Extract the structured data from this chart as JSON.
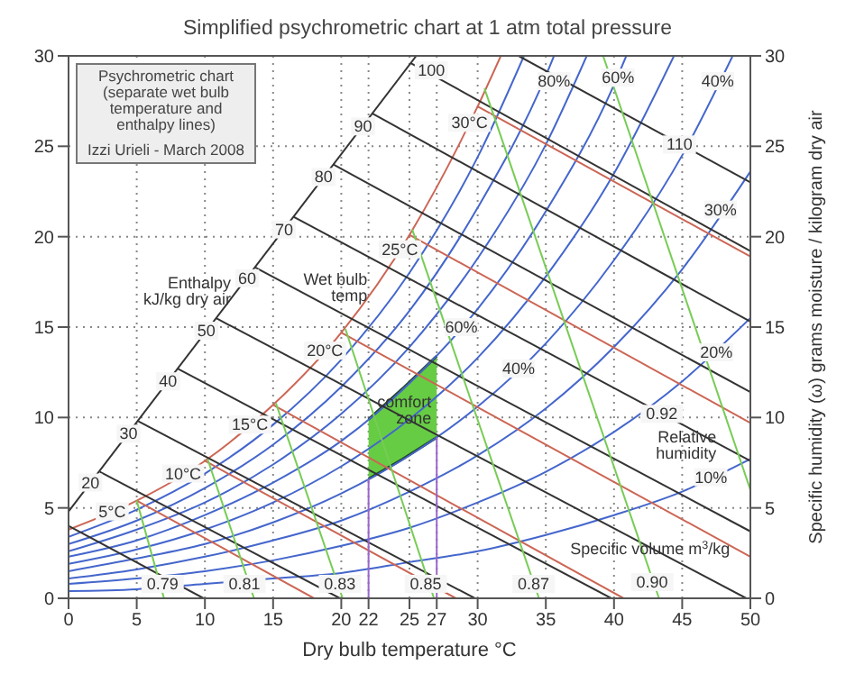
{
  "chart_data": {
    "type": "line",
    "title": "Simplified psychrometric chart at 1 atm total pressure",
    "xlabel": "Dry bulb temperature °C",
    "y2label": "Specific humidity (ω) grams moisture / kilogram dry air",
    "xlim": [
      0,
      50
    ],
    "xticks": [
      0,
      5,
      10,
      15,
      20,
      22,
      25,
      27,
      30,
      35,
      40,
      45,
      50
    ],
    "ylim": [
      0,
      30
    ],
    "yticks": [
      0,
      5,
      10,
      15,
      20,
      25,
      30
    ],
    "y2lim": [
      0,
      30
    ],
    "y2ticks": [
      0,
      5,
      10,
      15,
      20,
      25,
      30
    ],
    "grid": true,
    "series": [
      {
        "color": "#cc6655",
        "x": [
          0,
          5,
          10,
          15,
          20,
          25,
          30,
          31.7
        ],
        "values": [
          3.8,
          5.4,
          7.6,
          10.7,
          14.7,
          20.1,
          27.2,
          30
        ]
      },
      {
        "color": "#4466cc",
        "x": [
          0,
          5,
          10,
          15,
          20,
          25,
          30,
          33.4
        ],
        "values": [
          3.4,
          4.9,
          6.9,
          9.6,
          13.2,
          18.0,
          24.4,
          30
        ]
      },
      {
        "color": "#4466cc",
        "x": [
          0,
          5,
          10,
          15,
          20,
          25,
          30,
          35,
          35.6
        ],
        "values": [
          3.0,
          4.3,
          6.1,
          8.5,
          11.7,
          15.9,
          21.6,
          28.9,
          30
        ]
      },
      {
        "color": "#4466cc",
        "x": [
          0,
          5,
          10,
          15,
          20,
          25,
          30,
          35,
          38
        ],
        "values": [
          2.6,
          3.8,
          5.3,
          7.4,
          10.2,
          13.9,
          18.8,
          25.1,
          30
        ]
      },
      {
        "color": "#4466cc",
        "x": [
          0,
          5,
          10,
          15,
          20,
          25,
          30,
          35,
          40,
          40.9
        ],
        "values": [
          2.3,
          3.2,
          4.6,
          6.4,
          8.7,
          11.9,
          16.0,
          21.4,
          28.4,
          30
        ]
      },
      {
        "color": "#4466cc",
        "x": [
          0,
          5,
          10,
          15,
          20,
          25,
          30,
          35,
          40,
          44.4
        ],
        "values": [
          1.9,
          2.7,
          3.8,
          5.3,
          7.3,
          9.9,
          13.3,
          17.8,
          23.5,
          30
        ]
      },
      {
        "color": "#4466cc",
        "x": [
          0,
          5,
          10,
          15,
          20,
          25,
          30,
          35,
          40,
          45,
          48.7
        ],
        "values": [
          1.5,
          2.2,
          3.0,
          4.2,
          5.8,
          7.9,
          10.6,
          14.1,
          18.7,
          24.5,
          30
        ]
      },
      {
        "color": "#4466cc",
        "x": [
          0,
          5,
          10,
          15,
          20,
          25,
          30,
          35,
          40,
          45,
          50
        ],
        "values": [
          1.1,
          1.6,
          2.3,
          3.2,
          4.3,
          5.9,
          7.9,
          10.5,
          13.9,
          18.2,
          23.6
        ]
      },
      {
        "color": "#4466cc",
        "x": [
          0,
          5,
          10,
          15,
          20,
          25,
          30,
          35,
          40,
          45,
          50
        ],
        "values": [
          0.8,
          1.1,
          1.5,
          2.1,
          2.9,
          3.9,
          5.3,
          7.0,
          9.2,
          12.0,
          15.5
        ]
      },
      {
        "color": "#4466cc",
        "x": [
          0,
          5,
          10,
          15,
          20,
          25,
          30,
          35,
          40,
          45,
          50
        ],
        "values": [
          0.4,
          0.5,
          0.8,
          1.1,
          1.4,
          2.0,
          2.6,
          3.5,
          4.6,
          5.9,
          7.7
        ]
      },
      {
        "color": "#333333",
        "x": [
          0,
          25.5
        ],
        "values": [
          4.8,
          30
        ]
      },
      {
        "color": "#333333",
        "x": [
          0,
          9.9
        ],
        "values": [
          4.0,
          0
        ]
      },
      {
        "color": "#333333",
        "x": [
          2.3,
          19.9
        ],
        "values": [
          7.0,
          0
        ]
      },
      {
        "color": "#333333",
        "x": [
          5.1,
          29.8
        ],
        "values": [
          9.8,
          0
        ]
      },
      {
        "color": "#333333",
        "x": [
          8.0,
          39.8
        ],
        "values": [
          12.7,
          0
        ]
      },
      {
        "color": "#333333",
        "x": [
          10.8,
          49.7
        ],
        "values": [
          15.5,
          0
        ]
      },
      {
        "color": "#333333",
        "x": [
          13.7,
          50
        ],
        "values": [
          18.3,
          3.7
        ]
      },
      {
        "color": "#333333",
        "x": [
          16.5,
          50
        ],
        "values": [
          21.1,
          7.6
        ]
      },
      {
        "color": "#333333",
        "x": [
          19.4,
          50
        ],
        "values": [
          24.0,
          11.4
        ]
      },
      {
        "color": "#333333",
        "x": [
          22.3,
          50
        ],
        "values": [
          26.8,
          15.3
        ]
      },
      {
        "color": "#333333",
        "x": [
          25.1,
          50
        ],
        "values": [
          29.6,
          19.2
        ]
      },
      {
        "color": "#333333",
        "x": [
          33,
          50
        ],
        "values": [
          30,
          23.0
        ]
      },
      {
        "color": "#cc6655",
        "x": [
          5,
          18.0
        ],
        "values": [
          5.4,
          0
        ]
      },
      {
        "color": "#cc6655",
        "x": [
          10,
          28.4
        ],
        "values": [
          7.6,
          0
        ]
      },
      {
        "color": "#cc6655",
        "x": [
          15,
          40.7
        ],
        "values": [
          10.7,
          0
        ]
      },
      {
        "color": "#cc6655",
        "x": [
          20,
          50
        ],
        "values": [
          14.7,
          2.3
        ]
      },
      {
        "color": "#cc6655",
        "x": [
          25,
          50
        ],
        "values": [
          20.1,
          9.7
        ]
      },
      {
        "color": "#cc6655",
        "x": [
          30,
          50
        ],
        "values": [
          27.2,
          18.9
        ]
      },
      {
        "color": "#77cc55",
        "x": [
          5.0,
          7.0
        ],
        "values": [
          5.4,
          0
        ]
      },
      {
        "color": "#77cc55",
        "x": [
          10.2,
          13.6
        ],
        "values": [
          7.7,
          0
        ]
      },
      {
        "color": "#77cc55",
        "x": [
          15.2,
          20.1
        ],
        "values": [
          10.8,
          0
        ]
      },
      {
        "color": "#77cc55",
        "x": [
          20.3,
          26.8
        ],
        "values": [
          14.9,
          0
        ]
      },
      {
        "color": "#77cc55",
        "x": [
          25.2,
          34.5
        ],
        "values": [
          20.4,
          0
        ]
      },
      {
        "color": "#77cc55",
        "x": [
          30.5,
          43.3
        ],
        "values": [
          28.2,
          0
        ]
      },
      {
        "color": "#77cc55",
        "x": [
          39.2,
          50
        ],
        "values": [
          30,
          6.0
        ]
      },
      {
        "color": "#9966cc",
        "x": [
          22,
          22
        ],
        "values": [
          0,
          6.6
        ]
      },
      {
        "color": "#9966cc",
        "x": [
          27,
          27
        ],
        "values": [
          0,
          8.9
        ]
      },
      {
        "type": "area",
        "color": "#66cc44",
        "x": [
          22,
          24.5,
          27
        ],
        "values": [
          null,
          null,
          null
        ],
        "lower": [
          6.6,
          7.7,
          8.9
        ],
        "upper": [
          9.9,
          11.6,
          13.4
        ]
      }
    ],
    "annotations": [
      "Psychrometric chart (separate wet bulb temperature and enthalpy lines)",
      "Izzi Urieli - March 2008",
      {
        "text": "Enthalpy kJ/kg dry air",
        "x": 12.3,
        "y": 17.0
      },
      {
        "text": "20",
        "x": 1.6,
        "y": 6.4
      },
      {
        "text": "30",
        "x": 4.4,
        "y": 9.1
      },
      {
        "text": "40",
        "x": 7.3,
        "y": 12.0
      },
      {
        "text": "50",
        "x": 10.1,
        "y": 14.8
      },
      {
        "text": "60",
        "x": 13.1,
        "y": 17.7
      },
      {
        "text": "70",
        "x": 15.8,
        "y": 20.4
      },
      {
        "text": "80",
        "x": 18.7,
        "y": 23.3
      },
      {
        "text": "90",
        "x": 21.6,
        "y": 26.1
      },
      {
        "text": "100",
        "x": 26.6,
        "y": 29.2
      },
      {
        "text": "110",
        "x": 44.8,
        "y": 25.1
      },
      {
        "text": "Wet bulb temp",
        "x": 22.3,
        "y": 17.2
      },
      {
        "text": "5°C",
        "x": 3.2,
        "y": 4.8
      },
      {
        "text": "10°C",
        "x": 8.4,
        "y": 6.9
      },
      {
        "text": "15°C",
        "x": 13.3,
        "y": 9.6
      },
      {
        "text": "20°C",
        "x": 18.8,
        "y": 13.7
      },
      {
        "text": "25°C",
        "x": 24.3,
        "y": 19.3
      },
      {
        "text": "30°C",
        "x": 29.4,
        "y": 26.3
      },
      {
        "text": "80%",
        "x": 35.6,
        "y": 28.6
      },
      {
        "text": "60%",
        "x": 40.3,
        "y": 28.8
      },
      {
        "text": "40%",
        "x": 47.6,
        "y": 28.6
      },
      {
        "text": "30%",
        "x": 47.8,
        "y": 21.5
      },
      {
        "text": "20%",
        "x": 47.5,
        "y": 13.6
      },
      {
        "text": "Relative humidity",
        "x": 47.9,
        "y": 8.45
      },
      {
        "text": "10%",
        "x": 47.1,
        "y": 6.7
      },
      {
        "text": "60%",
        "x": 28.8,
        "y": 15.0
      },
      {
        "text": "40%",
        "x": 33.0,
        "y": 12.7
      },
      {
        "text": "comfort zone",
        "x": 27,
        "y": 10.4
      },
      {
        "text": "0.79",
        "x": 6.9,
        "y": 0.8
      },
      {
        "text": "0.81",
        "x": 12.9,
        "y": 0.8
      },
      {
        "text": "0.83",
        "x": 19.9,
        "y": 0.8
      },
      {
        "text": "0.85",
        "x": 26.2,
        "y": 0.8
      },
      {
        "text": "0.87",
        "x": 34.1,
        "y": 0.8
      },
      {
        "text": "0.90",
        "x": 42.8,
        "y": 0.9
      },
      {
        "text": "0.92",
        "x": 43.5,
        "y": 10.2
      },
      {
        "text": "Specific volume m$^{3}$/kg",
        "x": 48.9,
        "y": 2.75
      }
    ]
  }
}
